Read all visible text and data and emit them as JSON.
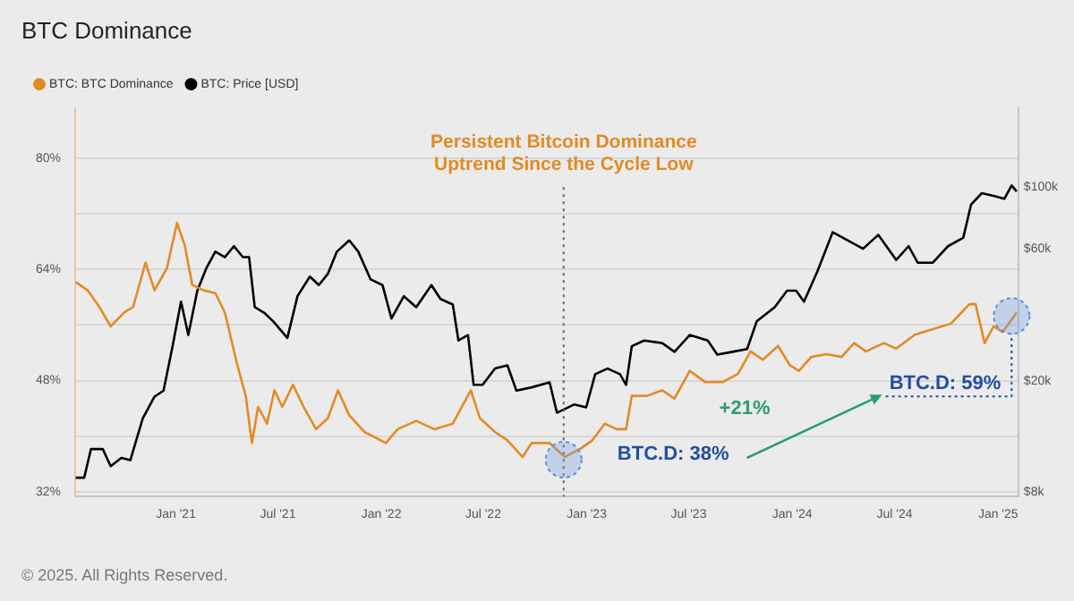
{
  "chart_data": {
    "type": "line",
    "title": "BTC Dominance",
    "series": [
      {
        "name": "BTC: BTC Dominance",
        "color": "#e38a24",
        "x": [
          "2020-07-07",
          "2020-07-28",
          "2020-08-18",
          "2020-09-07",
          "2020-10-01",
          "2020-10-17",
          "2020-11-08",
          "2020-11-24",
          "2020-12-16",
          "2021-01-03",
          "2021-01-17",
          "2021-01-30",
          "2021-02-19",
          "2021-03-12",
          "2021-03-29",
          "2021-04-19",
          "2021-05-05",
          "2021-05-16",
          "2021-05-27",
          "2021-06-12",
          "2021-06-25",
          "2021-07-09",
          "2021-07-28",
          "2021-08-16",
          "2021-09-07",
          "2021-09-28",
          "2021-10-16",
          "2021-11-05",
          "2021-12-02",
          "2022-01-09",
          "2022-01-30",
          "2022-03-04",
          "2022-04-05",
          "2022-05-08",
          "2022-06-09",
          "2022-06-25",
          "2022-07-22",
          "2022-08-13",
          "2022-09-09",
          "2022-09-25",
          "2022-10-27",
          "2022-11-23",
          "2022-12-21",
          "2023-01-11",
          "2023-02-02",
          "2023-02-23",
          "2023-03-12",
          "2023-03-22",
          "2023-04-18",
          "2023-05-15",
          "2023-06-06",
          "2023-07-03",
          "2023-07-30",
          "2023-08-31",
          "2023-09-27",
          "2023-10-19",
          "2023-11-10",
          "2023-12-07",
          "2023-12-28",
          "2024-01-13",
          "2024-02-04",
          "2024-03-02",
          "2024-03-29",
          "2024-04-20",
          "2024-05-11",
          "2024-06-12",
          "2024-07-04",
          "2024-08-06",
          "2024-09-07",
          "2024-10-09",
          "2024-11-11",
          "2024-11-22",
          "2024-12-08",
          "2024-12-24",
          "2025-01-09",
          "2025-02-03"
        ],
        "values": [
          62.2,
          61.0,
          58.6,
          55.8,
          57.8,
          58.6,
          65.0,
          61.0,
          64.2,
          70.7,
          67.4,
          61.8,
          61.0,
          60.6,
          57.8,
          50.6,
          45.8,
          39.0,
          44.2,
          41.8,
          46.6,
          44.2,
          47.4,
          44.2,
          41.0,
          42.6,
          46.6,
          43.0,
          40.6,
          39.0,
          41.0,
          42.2,
          41.0,
          41.8,
          46.6,
          42.6,
          40.6,
          39.4,
          37.0,
          39.0,
          39.0,
          37.0,
          38.2,
          39.4,
          41.8,
          41.0,
          41.0,
          45.8,
          45.8,
          46.6,
          45.4,
          49.4,
          47.8,
          47.8,
          49.0,
          52.2,
          51.0,
          53.0,
          50.2,
          49.4,
          51.4,
          51.8,
          51.4,
          53.4,
          52.2,
          53.4,
          52.6,
          54.6,
          55.4,
          56.2,
          59.0,
          59.0,
          53.4,
          55.8,
          55.0,
          57.8
        ]
      },
      {
        "name": "BTC: Price [USD]",
        "color": "#000000",
        "axis": "y2",
        "x": [
          "2020-07-07",
          "2020-07-22",
          "2020-08-03",
          "2020-08-24",
          "2020-09-07",
          "2020-09-26",
          "2020-10-12",
          "2020-11-03",
          "2020-11-24",
          "2020-12-10",
          "2020-12-26",
          "2021-01-10",
          "2021-01-23",
          "2021-02-08",
          "2021-02-24",
          "2021-03-12",
          "2021-03-29",
          "2021-04-14",
          "2021-04-30",
          "2021-05-11",
          "2021-05-21",
          "2021-06-07",
          "2021-06-23",
          "2021-07-18",
          "2021-08-05",
          "2021-08-27",
          "2021-09-12",
          "2021-09-28",
          "2021-10-14",
          "2021-11-05",
          "2021-11-21",
          "2021-12-13",
          "2022-01-03",
          "2022-01-19",
          "2022-02-10",
          "2022-03-04",
          "2022-03-31",
          "2022-04-16",
          "2022-05-08",
          "2022-05-18",
          "2022-06-04",
          "2022-06-14",
          "2022-06-30",
          "2022-07-22",
          "2022-08-13",
          "2022-08-29",
          "2022-09-25",
          "2022-10-27",
          "2022-11-09",
          "2022-11-18",
          "2022-12-10",
          "2022-12-31",
          "2023-01-16",
          "2023-02-07",
          "2023-03-01",
          "2023-03-12",
          "2023-03-22",
          "2023-04-13",
          "2023-05-15",
          "2023-06-06",
          "2023-07-03",
          "2023-08-04",
          "2023-08-21",
          "2023-09-17",
          "2023-10-13",
          "2023-10-30",
          "2023-12-01",
          "2023-12-23",
          "2024-01-08",
          "2024-01-22",
          "2024-02-15",
          "2024-03-13",
          "2024-04-09",
          "2024-05-06",
          "2024-06-02",
          "2024-07-04",
          "2024-07-26",
          "2024-08-11",
          "2024-09-07",
          "2024-10-04",
          "2024-10-31",
          "2024-11-14",
          "2024-12-03",
          "2024-12-24",
          "2025-01-12",
          "2025-01-25",
          "2025-02-03"
        ],
        "values": [
          9000,
          9000,
          11400,
          11400,
          9900,
          10600,
          10400,
          14700,
          17600,
          18500,
          26700,
          38600,
          29300,
          42300,
          50900,
          58400,
          55800,
          61100,
          55800,
          55800,
          36900,
          35200,
          32800,
          28600,
          40400,
          47500,
          44300,
          48600,
          58400,
          64100,
          58400,
          46400,
          44300,
          33600,
          40400,
          36900,
          44300,
          39500,
          37700,
          28000,
          29300,
          19400,
          19400,
          22200,
          22800,
          18500,
          19000,
          19800,
          15400,
          15700,
          16500,
          16100,
          21200,
          22200,
          21200,
          19400,
          26700,
          28000,
          27400,
          25500,
          29300,
          28000,
          24900,
          25500,
          26100,
          32800,
          36900,
          42300,
          42300,
          38600,
          49700,
          68600,
          64100,
          59800,
          67100,
          54500,
          61100,
          53300,
          53300,
          61100,
          65500,
          86300,
          94700,
          92700,
          90400,
          101000,
          96000
        ]
      }
    ],
    "xlim": [
      "2020-07-06",
      "2025-02-06"
    ],
    "xticks": [
      {
        "value": "2021-01-01",
        "label": "Jan '21"
      },
      {
        "value": "2021-07-01",
        "label": "Jul '21"
      },
      {
        "value": "2022-01-01",
        "label": "Jan '22"
      },
      {
        "value": "2022-07-01",
        "label": "Jul '22"
      },
      {
        "value": "2023-01-01",
        "label": "Jan '23"
      },
      {
        "value": "2023-07-01",
        "label": "Jul '23"
      },
      {
        "value": "2024-01-01",
        "label": "Jan '24"
      },
      {
        "value": "2024-07-01",
        "label": "Jul '24"
      },
      {
        "value": "2025-01-01",
        "label": "Jan '25"
      }
    ],
    "ylim": [
      31.3,
      87.2
    ],
    "yticks": [
      {
        "value": 32,
        "label": "32%"
      },
      {
        "value": 40,
        "label": null
      },
      {
        "value": 48,
        "label": "48%"
      },
      {
        "value": 56,
        "label": null
      },
      {
        "value": 64,
        "label": "64%"
      },
      {
        "value": 72,
        "label": null
      },
      {
        "value": 80,
        "label": "80%"
      }
    ],
    "y2lim": [
      7700,
      191000
    ],
    "y2ticks": [
      {
        "value": 8000,
        "label": "$8k"
      },
      {
        "value": 20000,
        "label": "$20k"
      },
      {
        "value": 60000,
        "label": "$60k"
      },
      {
        "value": 100000,
        "label": "$100k"
      }
    ],
    "log": "y2",
    "grid": "y",
    "legend": "top left",
    "marker": "none",
    "ref_lines": [
      {
        "axis": "x",
        "value": "2022-11-21",
        "label": "Persistent Bitcoin Dominance Uptrend Since the Cycle Low",
        "color": "#666666",
        "line_style": "dotted"
      }
    ],
    "annotations": [
      {
        "text": "BTC.D: 38%",
        "x": "2022-11-21",
        "y": 36.6
      },
      {
        "text": "BTC.D: 59%",
        "x": "2025-01-25",
        "y": 57.3
      },
      "+21%",
      "© 2025. All Rights Reserved."
    ]
  }
}
